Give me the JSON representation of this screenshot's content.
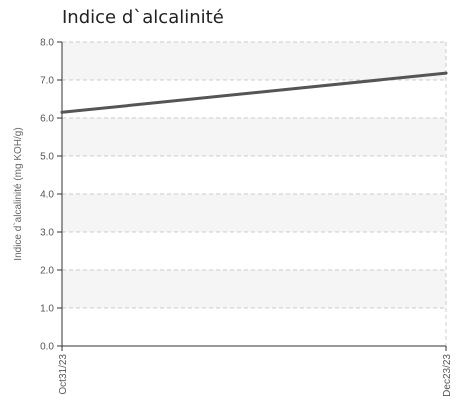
{
  "chart_data": {
    "type": "line",
    "title": "Indice d`alcalinité",
    "xlabel": "",
    "ylabel": "Indice d`alcalinité (mg KOH/g)",
    "x": [
      "Oct31/23",
      "Dec23/23"
    ],
    "y_ticks": [
      "0.0",
      "1.0",
      "2.0",
      "3.0",
      "4.0",
      "5.0",
      "6.0",
      "7.0",
      "8.0"
    ],
    "ylim": [
      0,
      8
    ],
    "grid": true,
    "series": [
      {
        "values": [
          6.15,
          7.18
        ]
      }
    ],
    "colors": {
      "line": "#555555",
      "band": "#f5f5f5",
      "grid": "#cccccc",
      "axis": "#333333"
    }
  }
}
